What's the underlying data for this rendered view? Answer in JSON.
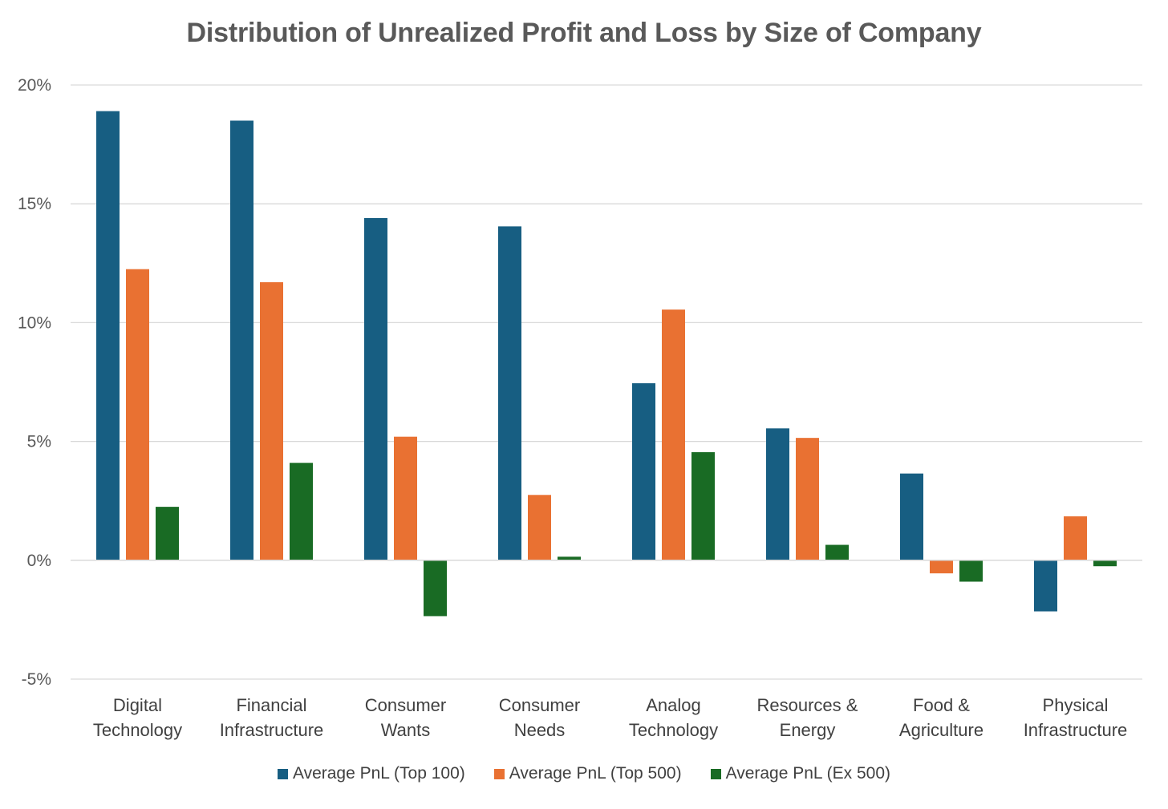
{
  "chart_data": {
    "type": "bar",
    "title": "Distribution of Unrealized Profit and Loss by Size of Company",
    "xlabel": "",
    "ylabel": "",
    "ylim": [
      -5,
      20
    ],
    "yticks": [
      -5,
      0,
      5,
      10,
      15,
      20
    ],
    "ytick_labels": [
      "-5%",
      "0%",
      "5%",
      "10%",
      "15%",
      "20%"
    ],
    "grid": true,
    "legend_position": "bottom",
    "categories": [
      [
        "Digital",
        "Technology"
      ],
      [
        "Financial",
        "Infrastructure"
      ],
      [
        "Consumer",
        "Wants"
      ],
      [
        "Consumer",
        "Needs"
      ],
      [
        "Analog",
        "Technology"
      ],
      [
        "Resources &",
        "Energy"
      ],
      [
        "Food &",
        "Agriculture"
      ],
      [
        "Physical",
        "Infrastructure"
      ]
    ],
    "series": [
      {
        "name": "Average PnL (Top 100)",
        "color": "#175e82",
        "values": [
          18.9,
          18.5,
          14.4,
          14.05,
          7.45,
          5.55,
          3.65,
          -2.15
        ]
      },
      {
        "name": "Average PnL (Top 500)",
        "color": "#e97132",
        "values": [
          12.25,
          11.7,
          5.2,
          2.75,
          10.55,
          5.15,
          -0.55,
          1.85
        ]
      },
      {
        "name": "Average PnL (Ex 500)",
        "color": "#196b24",
        "values": [
          2.25,
          4.1,
          -2.35,
          0.15,
          4.55,
          0.65,
          -0.9,
          -0.25
        ]
      }
    ]
  }
}
